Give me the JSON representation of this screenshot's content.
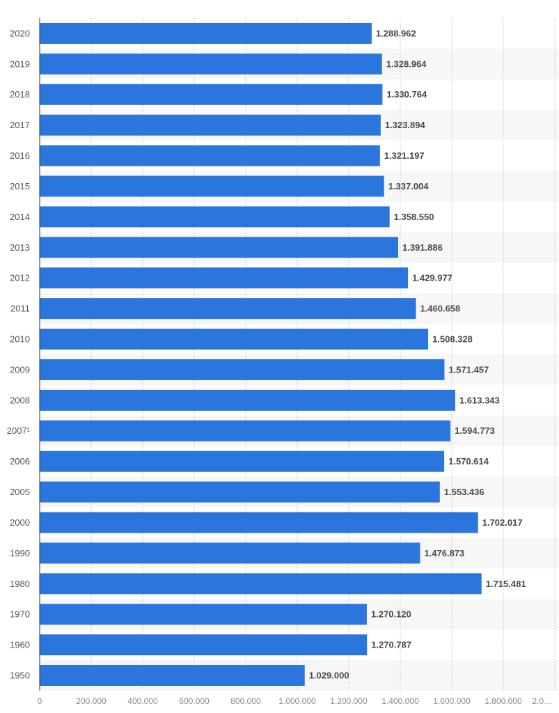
{
  "chart_data": {
    "type": "bar",
    "orientation": "horizontal",
    "categories": [
      "2020",
      "2019",
      "2018",
      "2017",
      "2016",
      "2015",
      "2014",
      "2013",
      "2012",
      "2011",
      "2010",
      "2009",
      "2008",
      "2007¹",
      "2006",
      "2005",
      "2000",
      "1990",
      "1980",
      "1970",
      "1960",
      "1950"
    ],
    "values": [
      1288962,
      1328964,
      1330764,
      1323894,
      1321197,
      1337004,
      1358550,
      1391886,
      1429977,
      1460658,
      1508328,
      1571457,
      1613343,
      1594773,
      1570614,
      1553436,
      1702017,
      1476873,
      1715481,
      1270120,
      1270787,
      1029000
    ],
    "value_labels": [
      "1.288.962",
      "1.328.964",
      "1.330.764",
      "1.323.894",
      "1.321.197",
      "1.337.004",
      "1.358.550",
      "1.391.886",
      "1.429.977",
      "1.460.658",
      "1.508.328",
      "1.571.457",
      "1.613.343",
      "1.594.773",
      "1.570.614",
      "1.553.436",
      "1.702.017",
      "1.476.873",
      "1.715.481",
      "1.270.120",
      "1.270.787",
      "1.029.000"
    ],
    "color": "#2a76dd",
    "xlim": [
      0,
      2000000
    ],
    "xticks": [
      0,
      {
        "value": 200000,
        "label": "200.000"
      },
      {
        "value": 400000,
        "label": "400.000"
      },
      {
        "value": 600000,
        "label": "600.000"
      },
      {
        "value": 800000,
        "label": "800.000"
      },
      {
        "value": 1000000,
        "label": "1.000.000"
      },
      {
        "value": 1200000,
        "label": "1.200.000"
      },
      {
        "value": 1400000,
        "label": "1.400.000"
      },
      {
        "value": 1600000,
        "label": "1.600.000"
      },
      {
        "value": 1800000,
        "label": "1.800.000"
      },
      {
        "value": 2000000,
        "label": "2.0…"
      }
    ],
    "grid": true
  }
}
